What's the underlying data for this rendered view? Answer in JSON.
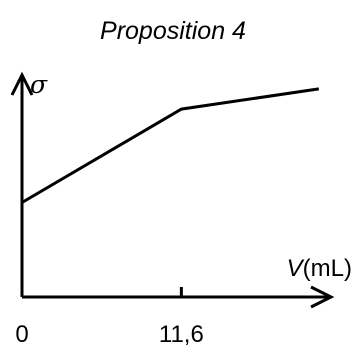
{
  "chart_data": {
    "type": "line",
    "title": "Proposition 4",
    "xlabel": {
      "symbol": "V",
      "unit": "(mL)"
    },
    "ylabel": {
      "symbol": "σ"
    },
    "x_ticks": [
      {
        "value": 0,
        "label": "0"
      },
      {
        "value": 11.6,
        "label": "11,6"
      }
    ],
    "xlim": [
      0,
      23
    ],
    "ylim": [
      0,
      10
    ],
    "grid": false,
    "legend": "none",
    "series": [
      {
        "points": [
          {
            "x": 0,
            "y": 4.2
          },
          {
            "x": 11.6,
            "y": 8.35
          },
          {
            "x": 21.6,
            "y": 9.25
          }
        ]
      }
    ],
    "colors": {
      "axis": "#000000",
      "line": "#000000"
    }
  }
}
